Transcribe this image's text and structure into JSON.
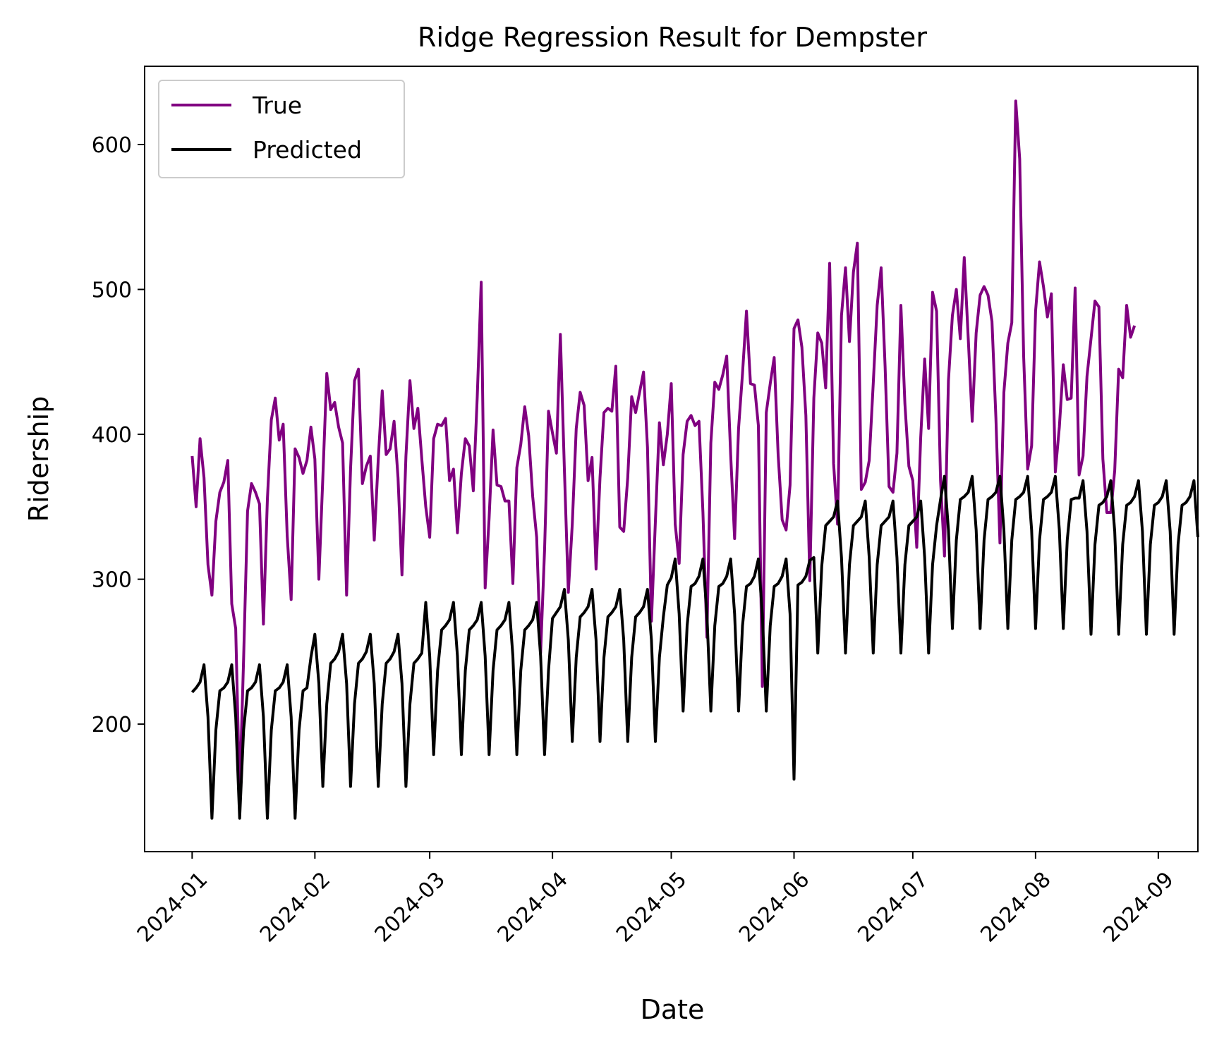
{
  "chart_data": {
    "type": "line",
    "title": "Ridge Regression Result for Dempster",
    "xlabel": "Date",
    "ylabel": "Ridership",
    "x_start": "2024-01-01",
    "x_end": "2024-08-31",
    "xlim": [
      "2023-12-20",
      "2024-09-11"
    ],
    "ylim": [
      112,
      654
    ],
    "x_ticks": [
      "2024-01",
      "2024-02",
      "2024-03",
      "2024-04",
      "2024-05",
      "2024-06",
      "2024-07",
      "2024-08",
      "2024-09"
    ],
    "y_ticks": [
      200,
      300,
      400,
      500,
      600
    ],
    "grid": false,
    "legend_position": "upper-left",
    "series": [
      {
        "name": "True",
        "color": "#800080",
        "values": [
          385,
          350,
          397,
          370,
          310,
          289,
          340,
          360,
          367,
          382,
          283,
          266,
          150,
          245,
          347,
          366,
          360,
          352,
          269,
          355,
          410,
          425,
          396,
          407,
          330,
          286,
          390,
          384,
          373,
          382,
          405,
          383,
          300,
          370,
          442,
          417,
          422,
          405,
          394,
          289,
          376,
          437,
          445,
          366,
          378,
          385,
          327,
          383,
          430,
          386,
          390,
          409,
          370,
          303,
          385,
          437,
          404,
          418,
          383,
          350,
          329,
          397,
          407,
          406,
          411,
          368,
          376,
          332,
          373,
          397,
          392,
          361,
          426,
          505,
          294,
          342,
          403,
          365,
          364,
          354,
          354,
          297,
          377,
          393,
          419,
          399,
          357,
          329,
          249,
          320,
          416,
          401,
          387,
          469,
          376,
          291,
          338,
          404,
          429,
          420,
          368,
          384,
          307,
          370,
          415,
          418,
          416,
          447,
          336,
          333,
          370,
          426,
          415,
          429,
          443,
          391,
          271,
          340,
          408,
          379,
          400,
          435,
          338,
          311,
          386,
          409,
          413,
          406,
          409,
          346,
          260,
          394,
          436,
          431,
          441,
          454,
          386,
          328,
          404,
          442,
          485,
          435,
          434,
          406,
          226,
          415,
          435,
          453,
          386,
          341,
          334,
          365,
          473,
          479,
          460,
          413,
          299,
          425,
          470,
          463,
          432,
          518,
          380,
          338,
          482,
          515,
          464,
          512,
          532,
          362,
          367,
          382,
          435,
          489,
          515,
          447,
          364,
          360,
          387,
          489,
          421,
          378,
          368,
          322,
          398,
          452,
          404,
          498,
          485,
          368,
          316,
          437,
          482,
          500,
          466,
          522,
          466,
          409,
          470,
          496,
          502,
          496,
          478,
          411,
          325,
          429,
          463,
          477,
          630,
          590,
          454,
          376,
          392,
          485,
          519,
          502,
          481,
          497,
          374,
          405,
          448,
          424,
          425,
          501,
          372,
          385,
          440,
          466,
          492,
          488,
          383,
          346,
          346,
          375,
          445,
          439,
          489,
          467,
          475
        ]
      },
      {
        "name": "Predicted",
        "color": "#000000",
        "values": [
          222,
          225,
          229,
          241,
          205,
          135,
          196,
          223,
          225,
          229,
          241,
          205,
          135,
          196,
          223,
          225,
          229,
          241,
          205,
          135,
          196,
          223,
          225,
          229,
          241,
          205,
          135,
          196,
          223,
          225,
          246,
          262,
          228,
          157,
          214,
          242,
          245,
          250,
          262,
          228,
          157,
          214,
          242,
          245,
          250,
          262,
          228,
          157,
          214,
          242,
          245,
          250,
          262,
          228,
          157,
          214,
          242,
          245,
          249,
          284,
          247,
          179,
          237,
          265,
          268,
          272,
          284,
          247,
          179,
          237,
          265,
          268,
          272,
          284,
          247,
          179,
          237,
          265,
          268,
          272,
          284,
          247,
          179,
          237,
          265,
          268,
          272,
          284,
          247,
          179,
          237,
          273,
          277,
          281,
          293,
          258,
          188,
          246,
          274,
          277,
          281,
          293,
          258,
          188,
          246,
          274,
          277,
          281,
          293,
          258,
          188,
          246,
          274,
          277,
          281,
          293,
          258,
          188,
          246,
          274,
          296,
          301,
          314,
          276,
          209,
          268,
          295,
          297,
          302,
          314,
          276,
          209,
          268,
          295,
          297,
          302,
          314,
          276,
          209,
          268,
          295,
          297,
          302,
          314,
          276,
          209,
          268,
          295,
          297,
          302,
          314,
          276,
          162,
          296,
          298,
          302,
          313,
          315,
          249,
          309,
          337,
          340,
          343,
          354,
          315,
          249,
          310,
          337,
          340,
          343,
          354,
          315,
          249,
          310,
          337,
          340,
          343,
          354,
          315,
          249,
          310,
          337,
          340,
          343,
          354,
          315,
          249,
          310,
          337,
          355,
          371,
          334,
          266,
          327,
          355,
          357,
          360,
          371,
          334,
          266,
          327,
          355,
          357,
          360,
          371,
          334,
          266,
          327,
          355,
          357,
          360,
          371,
          334,
          266,
          327,
          355,
          357,
          360,
          371,
          334,
          266,
          327,
          355,
          356,
          356,
          368,
          333,
          262,
          324,
          351,
          353,
          357,
          368,
          333,
          262,
          324,
          351,
          353,
          357,
          368,
          333,
          262,
          324,
          351,
          353,
          357,
          368,
          333,
          262,
          324,
          351,
          353,
          357,
          368,
          329
        ]
      }
    ]
  }
}
